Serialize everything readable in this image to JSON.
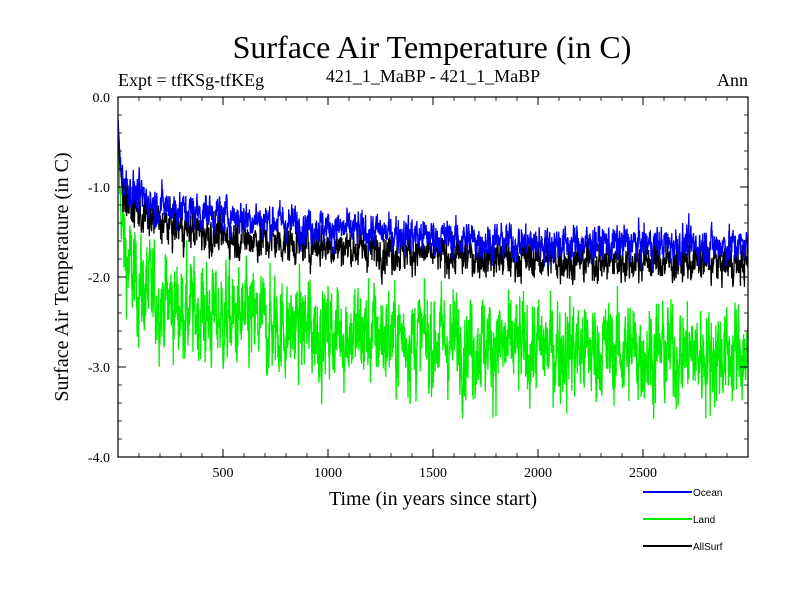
{
  "chart_data": {
    "type": "line",
    "title": "Surface Air Temperature (in C)",
    "subtitle_left": "Expt = tfKSg-tfKEg",
    "subtitle_center": "421_1_MaBP - 421_1_MaBP",
    "subtitle_right": "Ann",
    "xlabel": "Time (in years since start)",
    "ylabel": "Surface Air Temperature (in C)",
    "xlim": [
      0,
      3000
    ],
    "ylim": [
      -4.0,
      0.0
    ],
    "xticks": [
      500,
      1000,
      1500,
      2000,
      2500
    ],
    "xtick_labels": [
      "500",
      "1000",
      "1500",
      "2000",
      "2500"
    ],
    "yticks": [
      0.0,
      -1.0,
      -2.0,
      -3.0,
      -4.0
    ],
    "ytick_labels": [
      "0.0",
      "-1.0",
      "-2.0",
      "-3.0",
      "-4.0"
    ],
    "series": [
      {
        "name": "Land",
        "color": "#00ee00",
        "x": [
          0,
          10,
          25,
          50,
          100,
          200,
          300,
          500,
          750,
          1000,
          1250,
          1500,
          1750,
          2000,
          2250,
          2500,
          2750,
          3000
        ],
        "values": [
          -0.5,
          -1.1,
          -1.6,
          -1.9,
          -2.1,
          -2.25,
          -2.35,
          -2.45,
          -2.55,
          -2.6,
          -2.65,
          -2.7,
          -2.75,
          -2.8,
          -2.8,
          -2.82,
          -2.85,
          -2.85
        ],
        "noise": 0.55
      },
      {
        "name": "AllSurf",
        "color": "#000000",
        "x": [
          0,
          10,
          25,
          50,
          100,
          200,
          300,
          500,
          750,
          1000,
          1250,
          1500,
          1750,
          2000,
          2250,
          2500,
          2750,
          3000
        ],
        "values": [
          -0.3,
          -0.8,
          -1.05,
          -1.2,
          -1.3,
          -1.4,
          -1.45,
          -1.55,
          -1.6,
          -1.65,
          -1.7,
          -1.75,
          -1.78,
          -1.8,
          -1.82,
          -1.82,
          -1.84,
          -1.85
        ],
        "noise": 0.22
      },
      {
        "name": "Ocean",
        "color": "#0000ee",
        "x": [
          0,
          10,
          25,
          50,
          100,
          200,
          300,
          500,
          750,
          1000,
          1250,
          1500,
          1750,
          2000,
          2250,
          2500,
          2750,
          3000
        ],
        "values": [
          -0.25,
          -0.7,
          -0.9,
          -1.0,
          -1.1,
          -1.2,
          -1.25,
          -1.3,
          -1.38,
          -1.45,
          -1.5,
          -1.55,
          -1.6,
          -1.62,
          -1.63,
          -1.63,
          -1.64,
          -1.65
        ],
        "noise": 0.2
      }
    ],
    "legend": [
      {
        "name": "Ocean",
        "color": "#0000ee"
      },
      {
        "name": "Land",
        "color": "#00ee00"
      },
      {
        "name": "AllSurf",
        "color": "#000000"
      }
    ],
    "legend_position": "bottom-right"
  }
}
